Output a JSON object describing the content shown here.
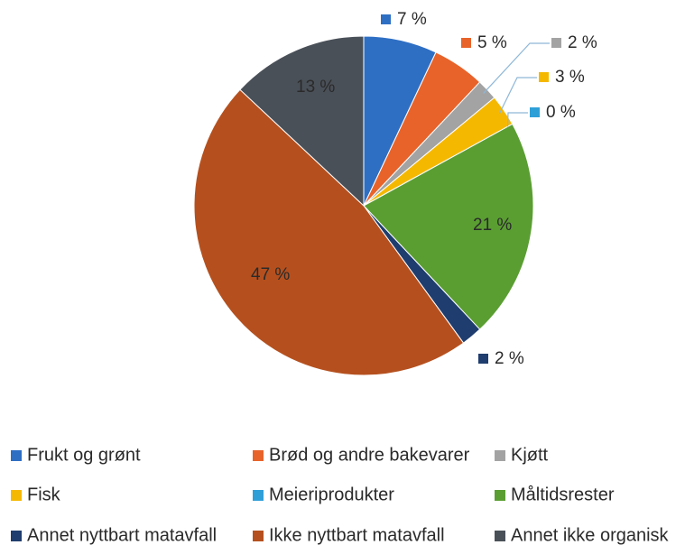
{
  "chart_data": {
    "type": "pie",
    "categories": [
      "Frukt og grønt",
      "Brød og andre bakevarer",
      "Kjøtt",
      "Fisk",
      "Meieriprodukter",
      "Måltidsrester",
      "Annet nyttbart matavfall",
      "Ikke nyttbart matavfall",
      "Annet ikke organisk"
    ],
    "values": [
      7,
      5,
      2,
      3,
      0,
      21,
      2,
      47,
      13
    ],
    "value_labels": [
      "7 %",
      "5 %",
      "2 %",
      "3 %",
      "0 %",
      "21 %",
      "2 %",
      "47 %",
      "13 %"
    ],
    "colors": [
      "#2e6fc4",
      "#e8632a",
      "#a3a3a3",
      "#f5b800",
      "#2f9fd8",
      "#5a9e32",
      "#1f3d6e",
      "#b5501e",
      "#4a5058"
    ]
  }
}
